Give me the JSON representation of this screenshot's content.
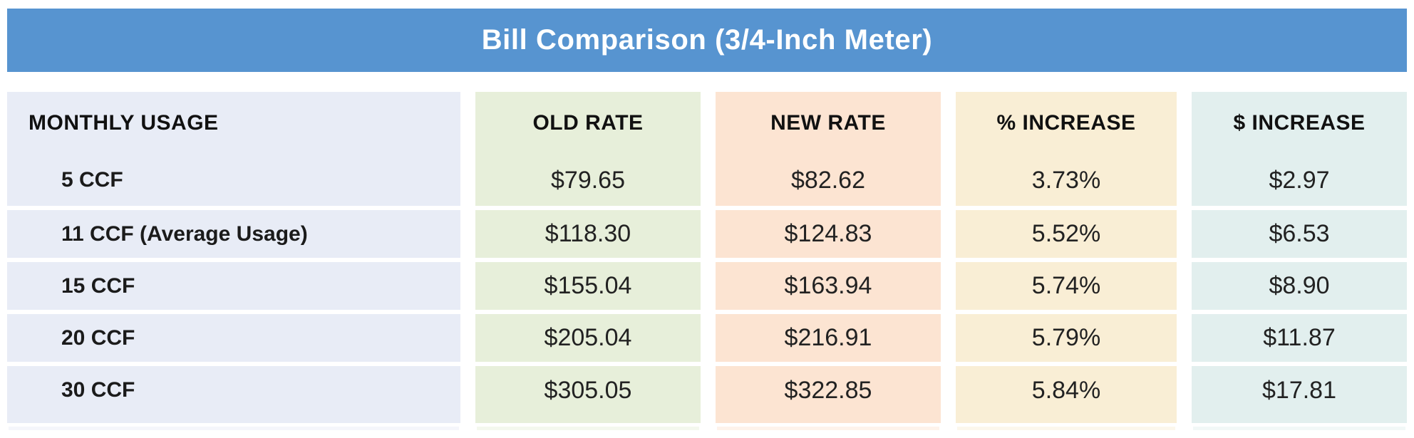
{
  "theme": {
    "title_bar_bg": "#5794d0",
    "title_text_color": "#ffffff",
    "body_text_color": "#1d1d1d",
    "column_colors": {
      "monthly_usage": "#e8ecf6",
      "old_rate": "#e7efda",
      "new_rate": "#fce4d2",
      "pct_increase": "#f9eed5",
      "dollar_increase": "#e2efee"
    }
  },
  "chart_data": {
    "type": "table",
    "title": "Bill Comparison (3/4-Inch Meter)",
    "columns": [
      {
        "id": "usage",
        "label": "MONTHLY USAGE",
        "bg": "#e8ecf6",
        "align": "left"
      },
      {
        "id": "old",
        "label": "OLD RATE",
        "bg": "#e7efda",
        "align": "center"
      },
      {
        "id": "new",
        "label": "NEW RATE",
        "bg": "#fce4d2",
        "align": "center"
      },
      {
        "id": "pct",
        "label": "% INCREASE",
        "bg": "#f9eed5",
        "align": "center"
      },
      {
        "id": "dollar",
        "label": "$ INCREASE",
        "bg": "#e2efee",
        "align": "center"
      }
    ],
    "rows": [
      {
        "usage": "5 CCF",
        "old": "$79.65",
        "new": "$82.62",
        "pct": "3.73%",
        "dollar": "$2.97"
      },
      {
        "usage": "11 CCF (Average Usage)",
        "old": "$118.30",
        "new": "$124.83",
        "pct": "5.52%",
        "dollar": "$6.53"
      },
      {
        "usage": "15 CCF",
        "old": "$155.04",
        "new": "$163.94",
        "pct": "5.74%",
        "dollar": "$8.90"
      },
      {
        "usage": "20 CCF",
        "old": "$205.04",
        "new": "$216.91",
        "pct": "5.79%",
        "dollar": "$11.87"
      },
      {
        "usage": "30 CCF",
        "old": "$305.05",
        "new": "$322.85",
        "pct": "5.84%",
        "dollar": "$17.81"
      }
    ]
  }
}
